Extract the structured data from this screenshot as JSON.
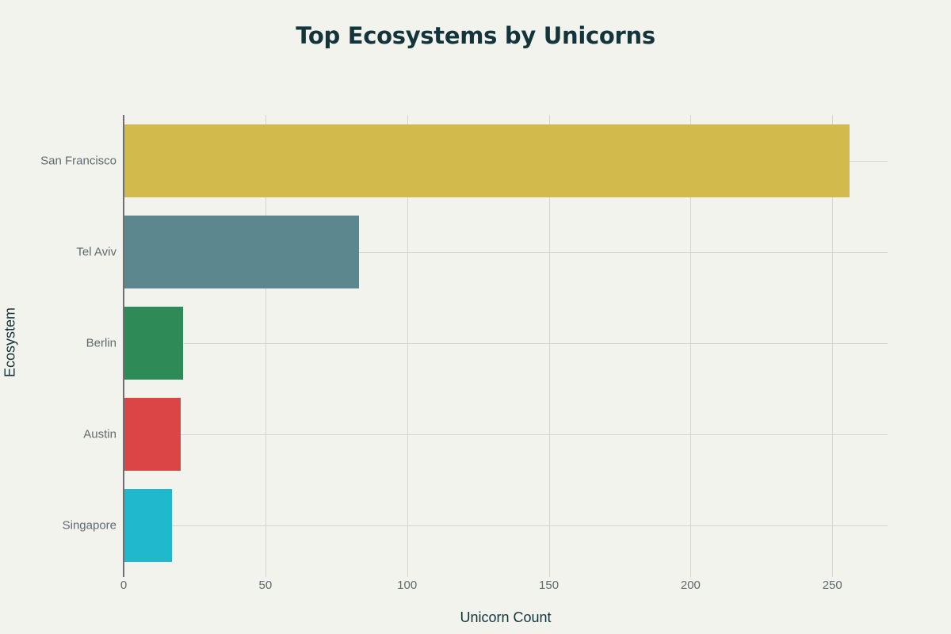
{
  "chart_data": {
    "type": "bar",
    "orientation": "horizontal",
    "title": "Top Ecosystems by Unicorns",
    "xlabel": "Unicorn Count",
    "ylabel": "Ecosystem",
    "categories": [
      "San Francisco",
      "Tel Aviv",
      "Berlin",
      "Austin",
      "Singapore"
    ],
    "values": [
      256,
      83,
      21,
      20,
      17
    ],
    "colors": [
      "#d2ba4c",
      "#5d878f",
      "#2e8b57",
      "#db4545",
      "#1fb8cd"
    ],
    "xlim": [
      0,
      269.5
    ],
    "xticks": [
      "0",
      "50",
      "100",
      "150",
      "200",
      "250"
    ],
    "xtick_values": [
      0,
      50,
      100,
      150,
      200,
      250
    ],
    "grid": true,
    "legend": "none"
  }
}
